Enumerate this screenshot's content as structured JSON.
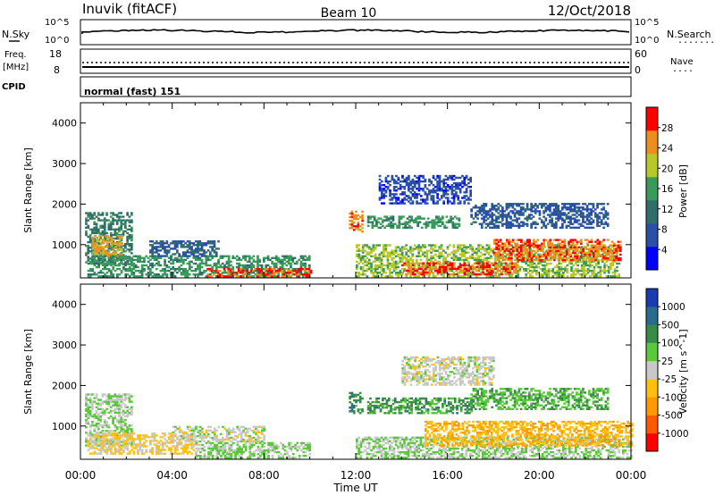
{
  "header": {
    "station": "Inuvik (fitACF)",
    "beam": "Beam 10",
    "date": "12/Oct/2018"
  },
  "top_panels": {
    "nsky_label": "N.Sky",
    "nsearch_label": "N.Search",
    "nsearch_dots": "........",
    "freq_label": "Freq.",
    "freq_unit": "[MHz]",
    "cpid_label": "CPID",
    "nave_label": "Nave",
    "nave_dots": "....",
    "cpid_text": "normal (fast) 151",
    "noise_ticks_left": [
      "10^5",
      "10^0"
    ],
    "noise_ticks_right": [
      "10^5",
      "10^0"
    ],
    "freq_ticks": [
      "18",
      "8"
    ],
    "nave_ticks": [
      "60",
      "0"
    ]
  },
  "chart_data": [
    {
      "type": "heatmap",
      "title": "",
      "xlabel": "Time UT",
      "ylabel": "Slant Range [km]",
      "x_ticks": [
        "00:00",
        "04:00",
        "08:00",
        "12:00",
        "16:00",
        "20:00",
        "00:00"
      ],
      "xlim_hours": [
        0,
        24
      ],
      "ylim": [
        180,
        4500
      ],
      "y_ticks": [
        1000,
        2000,
        3000,
        4000
      ],
      "colorbar": {
        "label": "Power [dB]",
        "ticks": [
          "28",
          "24",
          "20",
          "16",
          "12",
          "8",
          "4"
        ],
        "colors": [
          "#0000ff",
          "#2a4fa6",
          "#2f6e6a",
          "#3a9a5a",
          "#b8c82a",
          "#e89020",
          "#ff0000"
        ],
        "range": [
          0,
          30
        ]
      },
      "regions": [
        {
          "t": [
            0.2,
            2.2
          ],
          "r": [
            500,
            1800
          ],
          "v": 12
        },
        {
          "t": [
            0.5,
            1.8
          ],
          "r": [
            700,
            1200
          ],
          "v": 22
        },
        {
          "t": [
            0.3,
            10
          ],
          "r": [
            200,
            700
          ],
          "v": 14
        },
        {
          "t": [
            3.0,
            6.0
          ],
          "r": [
            700,
            1100
          ],
          "v": 8
        },
        {
          "t": [
            5.5,
            10
          ],
          "r": [
            200,
            400
          ],
          "v": 26
        },
        {
          "t": [
            11.7,
            12.3
          ],
          "r": [
            1300,
            1800
          ],
          "v": 24
        },
        {
          "t": [
            12.5,
            16.5
          ],
          "r": [
            1400,
            1700
          ],
          "v": 14
        },
        {
          "t": [
            12,
            23.5
          ],
          "r": [
            200,
            1000
          ],
          "v": 18
        },
        {
          "t": [
            14,
            19
          ],
          "r": [
            250,
            550
          ],
          "v": 26
        },
        {
          "t": [
            18,
            23.5
          ],
          "r": [
            600,
            1100
          ],
          "v": 25
        },
        {
          "t": [
            13,
            17
          ],
          "r": [
            2000,
            2700
          ],
          "v": 6
        },
        {
          "t": [
            17,
            23
          ],
          "r": [
            1400,
            2000
          ],
          "v": 7
        }
      ]
    },
    {
      "type": "heatmap",
      "title": "",
      "xlabel": "Time UT",
      "ylabel": "Slant Range [km]",
      "x_ticks": [
        "00:00",
        "04:00",
        "08:00",
        "12:00",
        "16:00",
        "20:00",
        "00:00"
      ],
      "xlim_hours": [
        0,
        24
      ],
      "ylim": [
        180,
        4500
      ],
      "y_ticks": [
        1000,
        2000,
        3000,
        4000
      ],
      "colorbar": {
        "label": "Velocity [m s^-1]",
        "ticks": [
          "1000",
          "500",
          "100",
          "25",
          "-25",
          "-100",
          "-500",
          "-1000"
        ],
        "colors": [
          "#ff0000",
          "#ff5a00",
          "#ff9a00",
          "#ffc010",
          "#c8c8c8",
          "#5ac83a",
          "#3a8a4a",
          "#2a6a8a",
          "#1a3ab0"
        ],
        "range": [
          -1000,
          1000
        ]
      },
      "regions": [
        {
          "t": [
            0.2,
            2.2
          ],
          "r": [
            500,
            1800
          ],
          "v": 120
        },
        {
          "t": [
            0.3,
            5
          ],
          "r": [
            300,
            800
          ],
          "v": -150
        },
        {
          "t": [
            4,
            8
          ],
          "r": [
            600,
            1000
          ],
          "v": 0
        },
        {
          "t": [
            5,
            10
          ],
          "r": [
            200,
            600
          ],
          "v": 150
        },
        {
          "t": [
            11.7,
            12.3
          ],
          "r": [
            1300,
            1800
          ],
          "v": 500
        },
        {
          "t": [
            12.5,
            17
          ],
          "r": [
            1300,
            1700
          ],
          "v": 400
        },
        {
          "t": [
            12,
            24
          ],
          "r": [
            200,
            700
          ],
          "v": 120
        },
        {
          "t": [
            15,
            24
          ],
          "r": [
            500,
            1100
          ],
          "v": -300
        },
        {
          "t": [
            14,
            18
          ],
          "r": [
            2000,
            2700
          ],
          "v": 0
        },
        {
          "t": [
            17,
            23
          ],
          "r": [
            1400,
            1900
          ],
          "v": 300
        }
      ]
    }
  ]
}
